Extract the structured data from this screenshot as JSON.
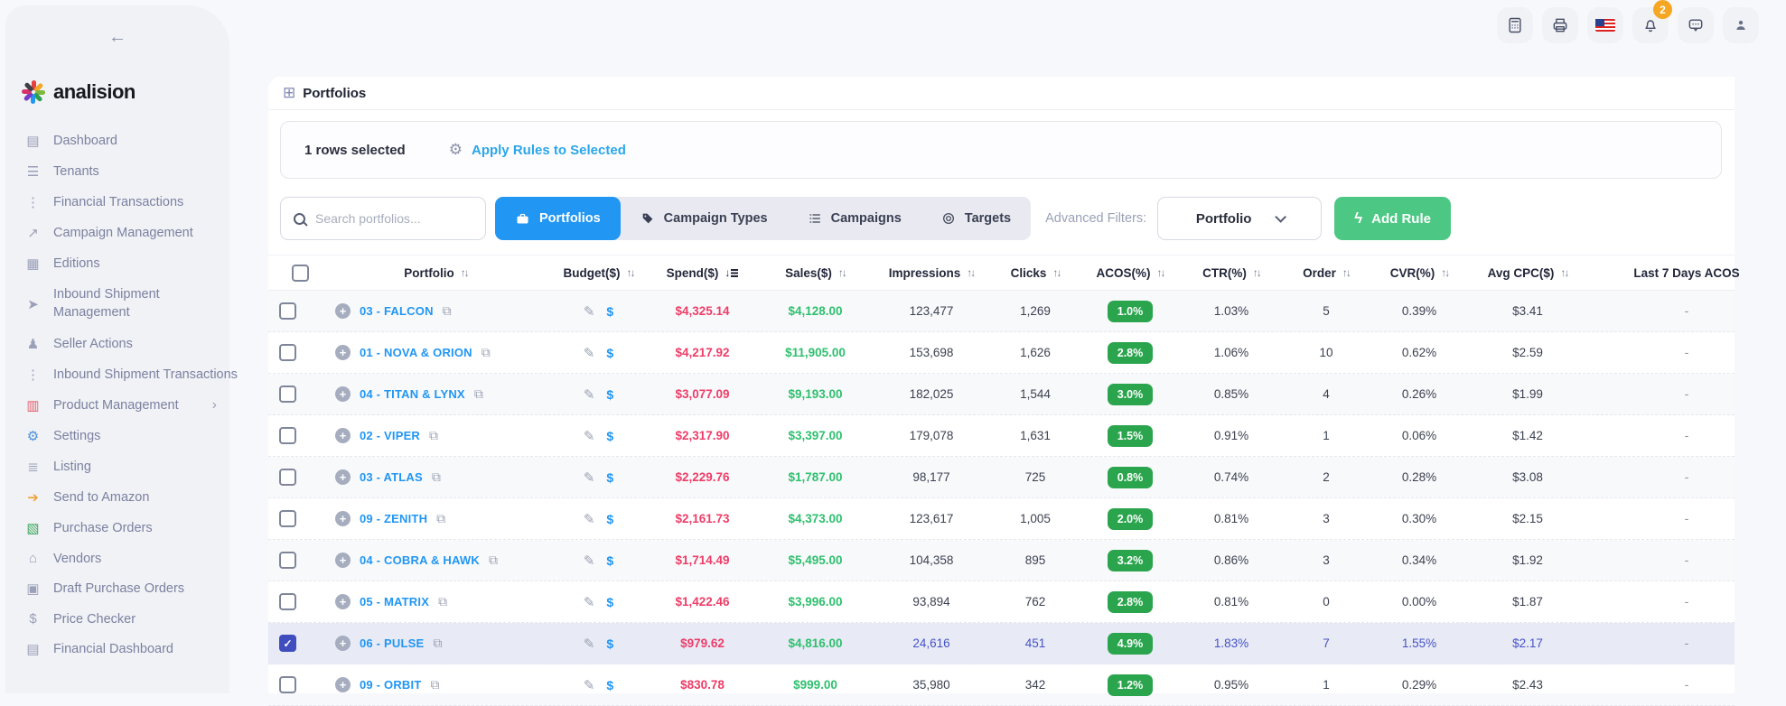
{
  "brand": {
    "name": "analision"
  },
  "sidebar": {
    "back_arrow": "←",
    "items": [
      {
        "label": "Dashboard",
        "icon": "dashboard-icon",
        "glyph": "▤"
      },
      {
        "label": "Tenants",
        "icon": "tenants-icon",
        "glyph": "☰"
      },
      {
        "label": "Financial Transactions",
        "icon": "financial-transactions-icon",
        "glyph": "⋮"
      },
      {
        "label": "Campaign Management",
        "icon": "campaign-management-icon",
        "glyph": "↗"
      },
      {
        "label": "Editions",
        "icon": "editions-icon",
        "glyph": "▦"
      },
      {
        "label": "Inbound Shipment Management",
        "icon": "inbound-shipment-icon",
        "glyph": "➤",
        "wrap": true
      },
      {
        "label": "Seller Actions",
        "icon": "seller-actions-icon",
        "glyph": "♟"
      },
      {
        "label": "Inbound Shipment Transactions",
        "icon": "inbound-shipment-transactions-icon",
        "glyph": "⋮"
      },
      {
        "label": "Product Management",
        "icon": "product-management-icon",
        "glyph": "▥",
        "glyph_color": "#e35d6a",
        "chevron": "›"
      },
      {
        "label": "Settings",
        "icon": "settings-icon",
        "glyph": "⚙",
        "glyph_color": "#4a90d9"
      },
      {
        "label": "Listing",
        "icon": "listing-icon",
        "glyph": "≣"
      },
      {
        "label": "Send to Amazon",
        "icon": "send-to-amazon-icon",
        "glyph": "➔",
        "glyph_color": "#f0a43c"
      },
      {
        "label": "Purchase Orders",
        "icon": "purchase-orders-icon",
        "glyph": "▧",
        "glyph_color": "#3fa75c"
      },
      {
        "label": "Vendors",
        "icon": "vendors-icon",
        "glyph": "⌂"
      },
      {
        "label": "Draft Purchase Orders",
        "icon": "draft-purchase-orders-icon",
        "glyph": "▣"
      },
      {
        "label": "Price Checker",
        "icon": "price-checker-icon",
        "glyph": "$"
      },
      {
        "label": "Financial Dashboard",
        "icon": "financial-dashboard-icon",
        "glyph": "▤"
      }
    ]
  },
  "header": {
    "icons": [
      "calculator-icon",
      "printer-icon",
      "us-flag-icon",
      "bell-icon",
      "chat-icon",
      "user-icon"
    ],
    "badge_count": "2"
  },
  "page": {
    "title": "Portfolios"
  },
  "selection_bar": {
    "selected_text": "1 rows selected",
    "apply_rules_label": "Apply Rules to Selected"
  },
  "toolbar": {
    "search_placeholder": "Search portfolios...",
    "tabs": [
      {
        "label": "Portfolios",
        "icon": "briefcase-icon",
        "active": true
      },
      {
        "label": "Campaign Types",
        "icon": "tag-icon",
        "active": false
      },
      {
        "label": "Campaigns",
        "icon": "list-icon",
        "active": false
      },
      {
        "label": "Targets",
        "icon": "target-icon",
        "active": false
      }
    ],
    "advanced_filters_label": "Advanced Filters:",
    "filter_dropdown_value": "Portfolio",
    "add_rule_label": "Add Rule"
  },
  "table": {
    "columns": [
      {
        "label": "Portfolio"
      },
      {
        "label": "Budget($)"
      },
      {
        "label": "Spend($)"
      },
      {
        "label": "Sales($)"
      },
      {
        "label": "Impressions"
      },
      {
        "label": "Clicks"
      },
      {
        "label": "ACOS(%)"
      },
      {
        "label": "CTR(%)"
      },
      {
        "label": "Order"
      },
      {
        "label": "CVR(%)"
      },
      {
        "label": "Avg CPC($)"
      },
      {
        "label": "Last 7 Days ACOS"
      }
    ],
    "sorted_column": "Spend($)",
    "sort_direction": "desc",
    "rows": [
      {
        "name": "03 - FALCON",
        "spend": "$4,325.14",
        "sales": "$4,128.00",
        "impressions": "123,477",
        "clicks": "1,269",
        "acos": "1.0%",
        "ctr": "1.03%",
        "order": "5",
        "cvr": "0.39%",
        "avg_cpc": "$3.41",
        "last7": "-",
        "selected": false
      },
      {
        "name": "01 - NOVA & ORION",
        "spend": "$4,217.92",
        "sales": "$11,905.00",
        "impressions": "153,698",
        "clicks": "1,626",
        "acos": "2.8%",
        "ctr": "1.06%",
        "order": "10",
        "cvr": "0.62%",
        "avg_cpc": "$2.59",
        "last7": "-",
        "selected": false
      },
      {
        "name": "04 - TITAN & LYNX",
        "spend": "$3,077.09",
        "sales": "$9,193.00",
        "impressions": "182,025",
        "clicks": "1,544",
        "acos": "3.0%",
        "ctr": "0.85%",
        "order": "4",
        "cvr": "0.26%",
        "avg_cpc": "$1.99",
        "last7": "-",
        "selected": false
      },
      {
        "name": "02 - VIPER",
        "spend": "$2,317.90",
        "sales": "$3,397.00",
        "impressions": "179,078",
        "clicks": "1,631",
        "acos": "1.5%",
        "ctr": "0.91%",
        "order": "1",
        "cvr": "0.06%",
        "avg_cpc": "$1.42",
        "last7": "-",
        "selected": false
      },
      {
        "name": "03 - ATLAS",
        "spend": "$2,229.76",
        "sales": "$1,787.00",
        "impressions": "98,177",
        "clicks": "725",
        "acos": "0.8%",
        "ctr": "0.74%",
        "order": "2",
        "cvr": "0.28%",
        "avg_cpc": "$3.08",
        "last7": "-",
        "selected": false
      },
      {
        "name": "09 - ZENITH",
        "spend": "$2,161.73",
        "sales": "$4,373.00",
        "impressions": "123,617",
        "clicks": "1,005",
        "acos": "2.0%",
        "ctr": "0.81%",
        "order": "3",
        "cvr": "0.30%",
        "avg_cpc": "$2.15",
        "last7": "-",
        "selected": false
      },
      {
        "name": "04 - COBRA & HAWK",
        "spend": "$1,714.49",
        "sales": "$5,495.00",
        "impressions": "104,358",
        "clicks": "895",
        "acos": "3.2%",
        "ctr": "0.86%",
        "order": "3",
        "cvr": "0.34%",
        "avg_cpc": "$1.92",
        "last7": "-",
        "selected": false
      },
      {
        "name": "05 - MATRIX",
        "spend": "$1,422.46",
        "sales": "$3,996.00",
        "impressions": "93,894",
        "clicks": "762",
        "acos": "2.8%",
        "ctr": "0.81%",
        "order": "0",
        "cvr": "0.00%",
        "avg_cpc": "$1.87",
        "last7": "-",
        "selected": false
      },
      {
        "name": "06 - PULSE",
        "spend": "$979.62",
        "sales": "$4,816.00",
        "impressions": "24,616",
        "clicks": "451",
        "acos": "4.9%",
        "ctr": "1.83%",
        "order": "7",
        "cvr": "1.55%",
        "avg_cpc": "$2.17",
        "last7": "-",
        "selected": true
      },
      {
        "name": "09 - ORBIT",
        "spend": "$830.78",
        "sales": "$999.00",
        "impressions": "35,980",
        "clicks": "342",
        "acos": "1.2%",
        "ctr": "0.95%",
        "order": "1",
        "cvr": "0.29%",
        "avg_cpc": "$2.43",
        "last7": "-",
        "selected": false
      }
    ]
  },
  "colors": {
    "accent_blue": "#2196f3",
    "apply_blue": "#2aa6ea",
    "badge_green": "#2aa54d",
    "spend_red": "#ee3d68",
    "sales_green": "#2fc06e",
    "add_rule_green": "#4dc884",
    "selected_indigo": "#4553c5",
    "notification_orange": "#f5a623"
  }
}
